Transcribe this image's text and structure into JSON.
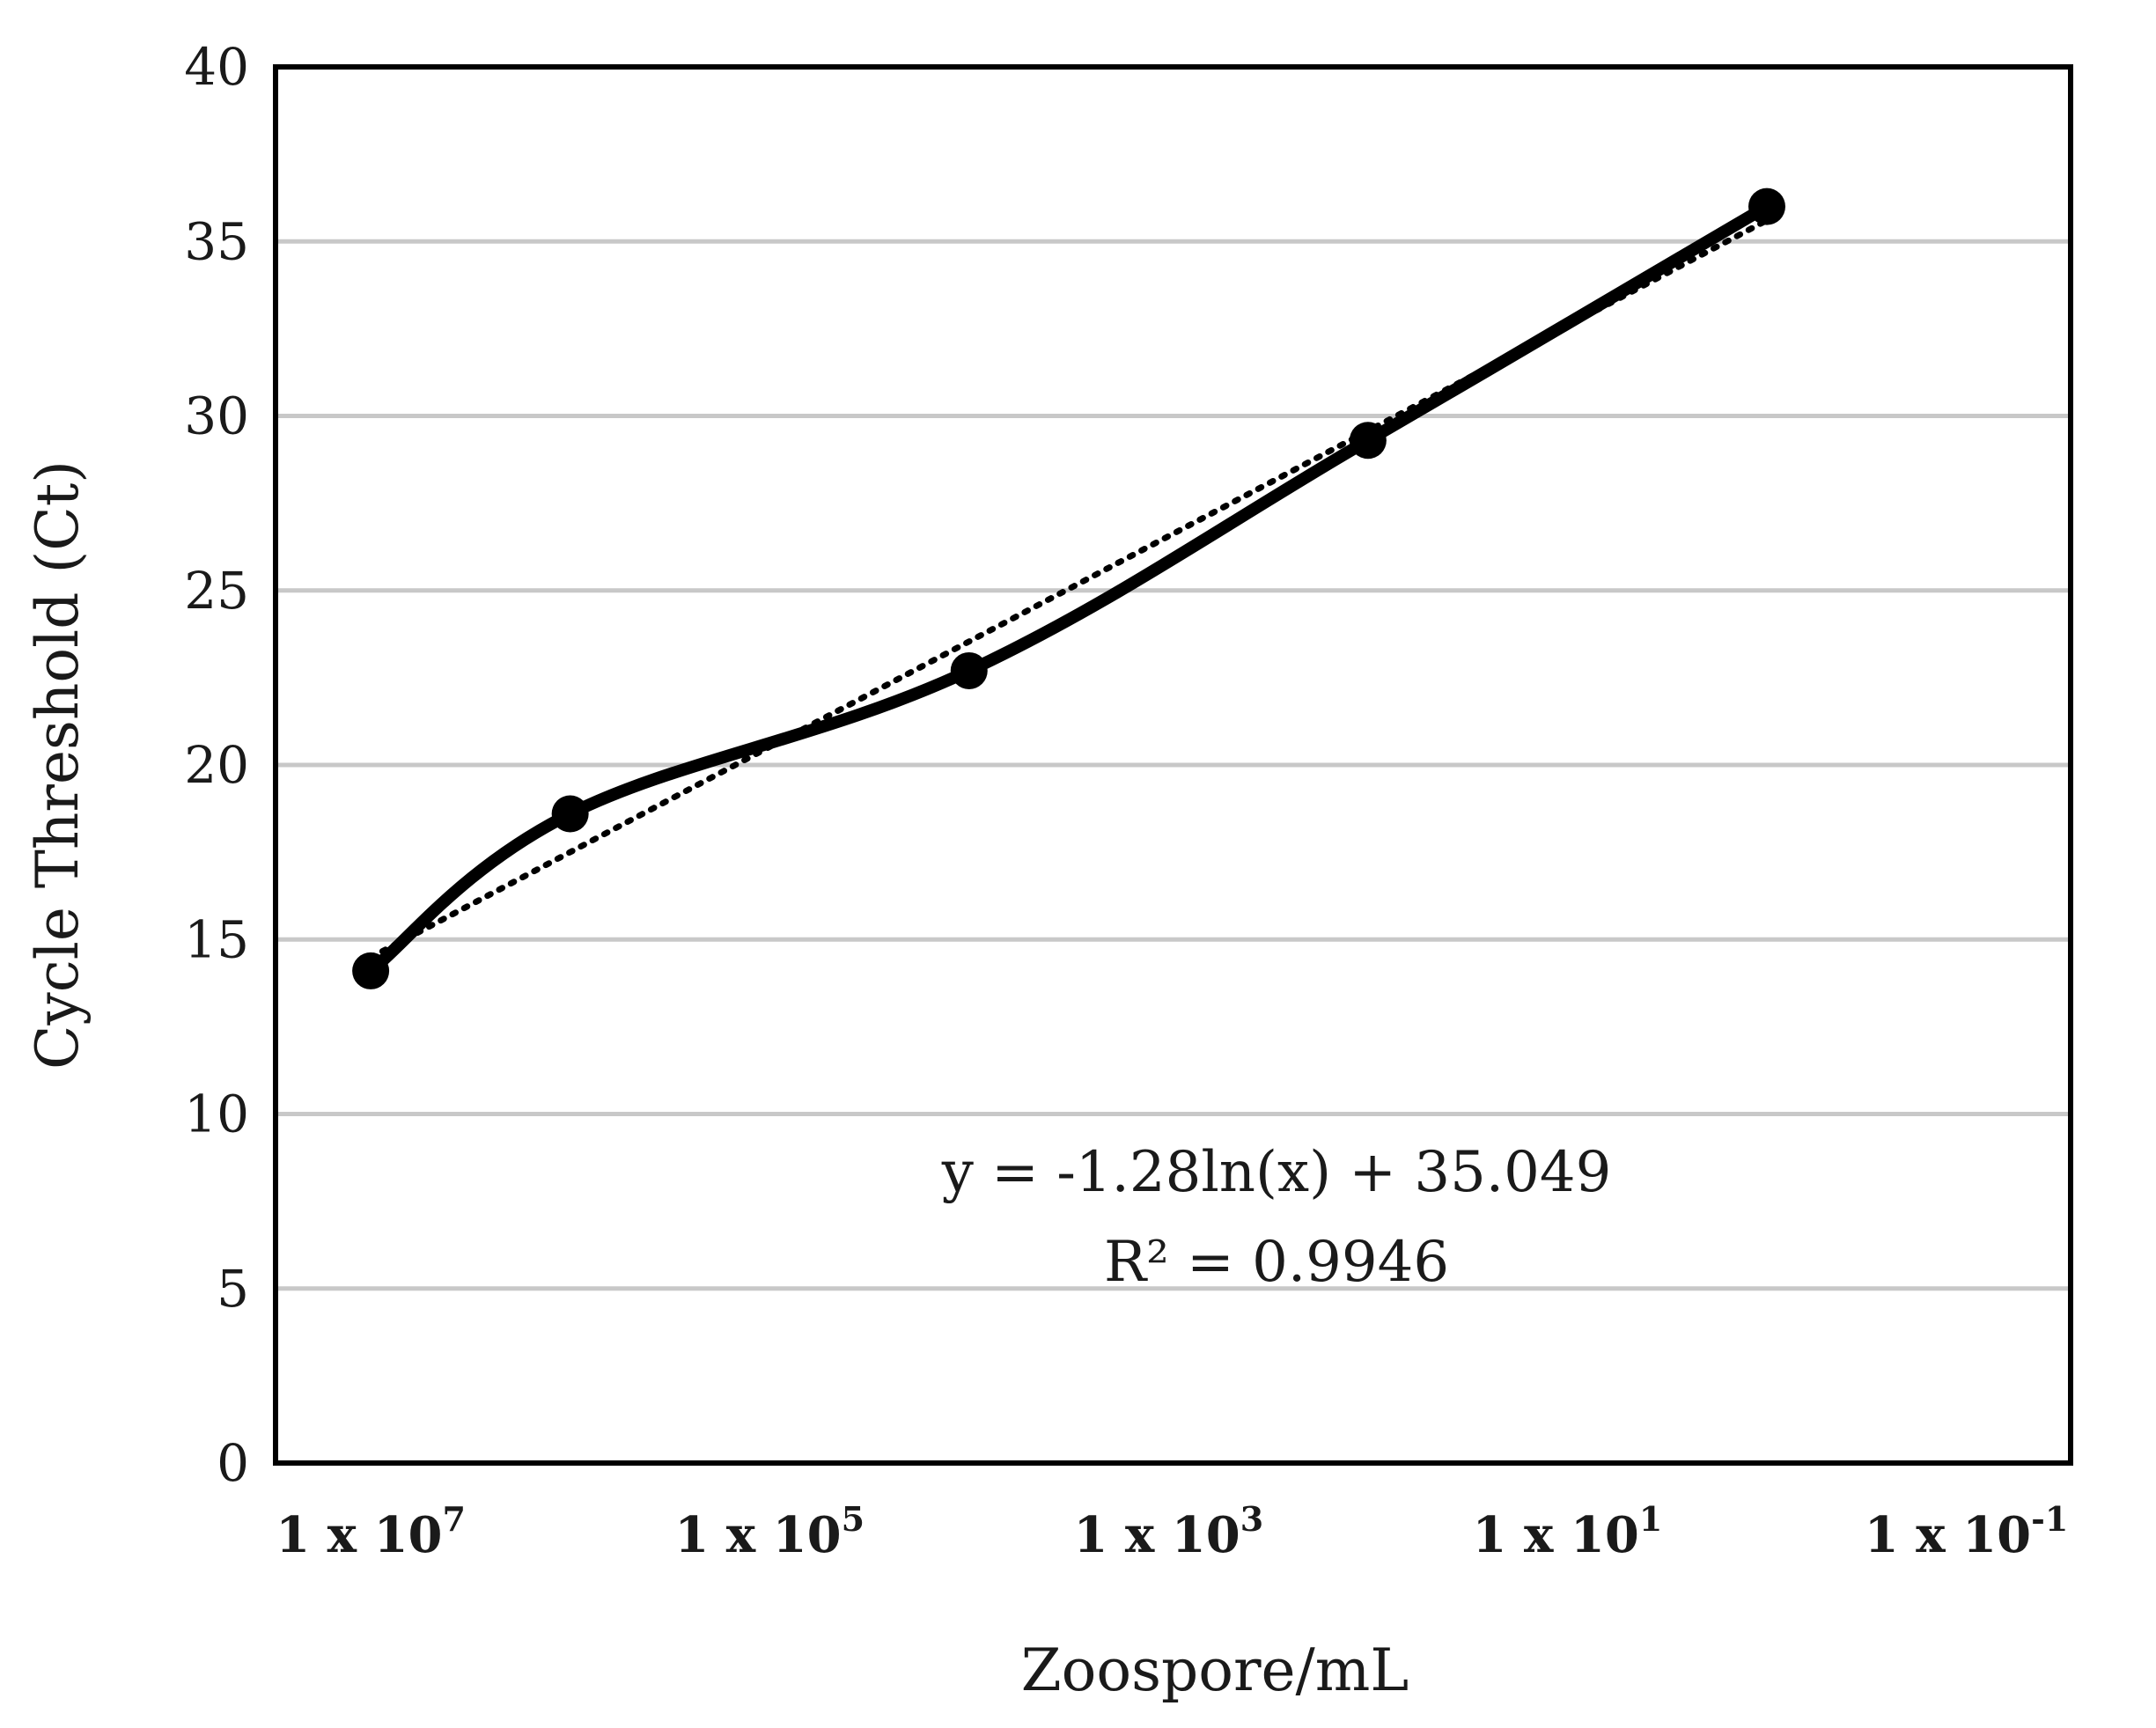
{
  "chart_data": {
    "type": "line",
    "xlabel": "Zoospore/mL",
    "ylabel": "Cycle Threshold (Ct)",
    "x_scale": "log",
    "x_reversed": true,
    "x_tick_labels": [
      {
        "base": "1 x 10",
        "exp": "7"
      },
      {
        "base": "1 x 10",
        "exp": "5"
      },
      {
        "base": "1 x 10",
        "exp": "3"
      },
      {
        "base": "1 x 10",
        "exp": "1"
      },
      {
        "base": "1 x 10",
        "exp": "-1"
      }
    ],
    "x_tick_values": [
      10000000,
      100000,
      1000,
      10,
      0.1
    ],
    "x_range": [
      30000000,
      0.03
    ],
    "ylim": [
      0,
      40
    ],
    "y_ticks": [
      0,
      5,
      10,
      15,
      20,
      25,
      30,
      35,
      40
    ],
    "grid": "horizontal",
    "series": [
      {
        "style": "solid-with-markers",
        "color": "#000000",
        "x": [
          10000000,
          1000000,
          100000,
          10000,
          1000,
          100,
          10,
          1
        ],
        "y": [
          14.1,
          18.6,
          null,
          22.7,
          null,
          29.3,
          null,
          36.0
        ]
      }
    ],
    "trendline": {
      "type": "logarithmic",
      "style": "dotted",
      "color": "#000000",
      "equation": "y = -1.28ln(x) + 35.049",
      "r_squared": "R² = 0.9946"
    }
  }
}
